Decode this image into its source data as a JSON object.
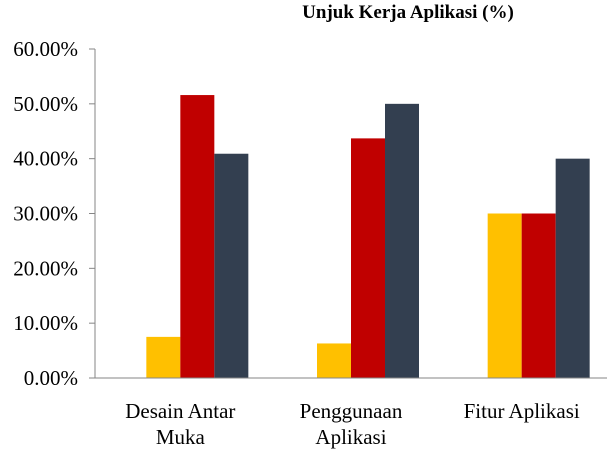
{
  "chart_data": {
    "type": "bar",
    "title": "Unjuk Kerja Aplikasi (%)",
    "categories": [
      [
        "Desain Antar",
        "Muka"
      ],
      [
        "Penggunaan",
        "Aplikasi"
      ],
      [
        "Fitur Aplikasi"
      ]
    ],
    "series": [
      {
        "values": [
          0,
          0,
          0
        ],
        "color": "#7f7f7f"
      },
      {
        "values": [
          7.5,
          6.3,
          30.0
        ],
        "color": "#ffc000"
      },
      {
        "values": [
          51.6,
          43.7,
          30.0
        ],
        "color": "#c00000"
      },
      {
        "values": [
          40.9,
          50.0,
          40.0
        ],
        "color": "#333f50"
      }
    ],
    "yticks": [
      "0.00%",
      "10.00%",
      "20.00%",
      "30.00%",
      "40.00%",
      "50.00%",
      "60.00%"
    ],
    "ylim": [
      0,
      60
    ],
    "xlabel": "",
    "ylabel": "",
    "grid": false,
    "legend": "none"
  }
}
